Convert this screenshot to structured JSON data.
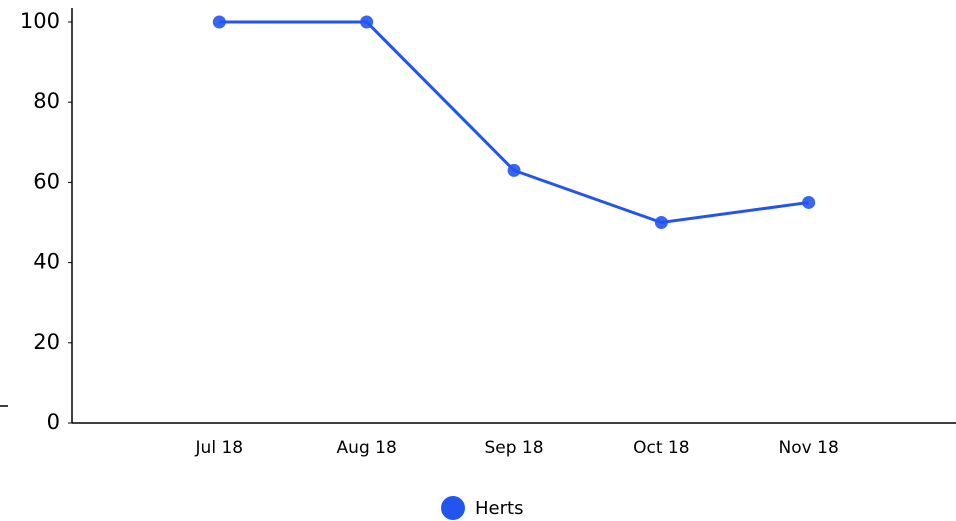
{
  "chart_data": {
    "type": "line",
    "categories": [
      "Jul 18",
      "Aug 18",
      "Sep 18",
      "Oct 18",
      "Nov 18"
    ],
    "series": [
      {
        "name": "Herts",
        "color": "#2255ee",
        "values": [
          100,
          100,
          63,
          50,
          55
        ]
      }
    ],
    "ylim": [
      0,
      100
    ],
    "yticks": [
      0,
      20,
      40,
      60,
      80,
      100
    ],
    "legend": "bottom"
  }
}
